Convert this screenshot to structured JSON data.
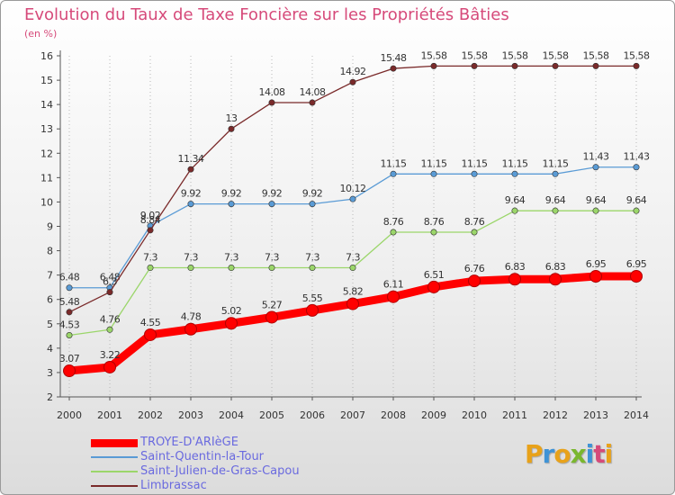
{
  "header": {
    "title": "Evolution du Taux de Taxe Foncière sur les Propriétés Bâties",
    "unit": "(en %)"
  },
  "logo": {
    "text": "Proxiti",
    "letters": [
      {
        "ch": "P",
        "color": "#e8a21a"
      },
      {
        "ch": "r",
        "color": "#3f93d6"
      },
      {
        "ch": "o",
        "color": "#e8a21a"
      },
      {
        "ch": "x",
        "color": "#7ab72e"
      },
      {
        "ch": "i",
        "color": "#3f93d6"
      },
      {
        "ch": "t",
        "color": "#d64a7a"
      },
      {
        "ch": "i",
        "color": "#e8a21a"
      }
    ]
  },
  "chart_data": {
    "type": "line",
    "title": "Evolution du Taux de Taxe Foncière sur les Propriétés Bâties",
    "ylabel": "(en %)",
    "xlabel": "",
    "x": [
      2000,
      2001,
      2002,
      2003,
      2004,
      2005,
      2006,
      2007,
      2008,
      2009,
      2010,
      2011,
      2012,
      2013,
      2014
    ],
    "x_labels": [
      "2000",
      "2001",
      "2002",
      "2003",
      "2004",
      "2005",
      "2006",
      "2007",
      "2008",
      "2009",
      "2010",
      "2011",
      "2012",
      "2013",
      "2014"
    ],
    "ylim": [
      2,
      16
    ],
    "y_ticks": [
      2,
      3,
      4,
      5,
      6,
      7,
      8,
      9,
      10,
      11,
      12,
      13,
      14,
      15,
      16
    ],
    "grid": "vertical-dotted",
    "legend_position": "bottom-left",
    "series": [
      {
        "name": "TROYE-D'ARIèGE",
        "color": "#ff0000",
        "emphasis": "thick",
        "values": [
          3.07,
          3.22,
          4.55,
          4.78,
          5.02,
          5.27,
          5.55,
          5.82,
          6.11,
          6.51,
          6.76,
          6.83,
          6.83,
          6.95,
          6.95
        ],
        "labels": [
          "3.07",
          "3.22",
          "4.55",
          "4.78",
          "5.02",
          "5.27",
          "5.55",
          "5.82",
          "6.11",
          "6.51",
          "6.76",
          "6.83",
          "6.83",
          "6.95",
          "6.95"
        ]
      },
      {
        "name": "Saint-Quentin-la-Tour",
        "color": "#5a9bd5",
        "emphasis": "normal",
        "values": [
          6.48,
          6.48,
          9.02,
          9.92,
          9.92,
          9.92,
          9.92,
          10.12,
          11.15,
          11.15,
          11.15,
          11.15,
          11.15,
          11.43,
          11.43
        ],
        "labels": [
          "6.48",
          "6.48",
          "9.02",
          "9.92",
          "9.92",
          "9.92",
          "9.92",
          "10.12",
          "11.15",
          "11.15",
          "11.15",
          "11.15",
          "11.15",
          "11.43",
          "11.43"
        ]
      },
      {
        "name": "Saint-Julien-de-Gras-Capou",
        "color": "#9bd66a",
        "emphasis": "normal",
        "values": [
          4.53,
          4.76,
          7.3,
          7.3,
          7.3,
          7.3,
          7.3,
          7.3,
          8.76,
          8.76,
          8.76,
          9.64,
          9.64,
          9.64,
          9.64
        ],
        "labels": [
          "4.53",
          "4.76",
          "7.3",
          "7.3",
          "7.3",
          "7.3",
          "7.3",
          "7.3",
          "8.76",
          "8.76",
          "8.76",
          "9.64",
          "9.64",
          "9.64",
          "9.64"
        ]
      },
      {
        "name": "Limbrassac",
        "color": "#7a2a2a",
        "emphasis": "normal",
        "values": [
          5.48,
          6.3,
          8.84,
          11.34,
          13,
          14.08,
          14.08,
          14.92,
          15.48,
          15.58,
          15.58,
          15.58,
          15.58,
          15.58,
          15.58
        ],
        "labels": [
          "5.48",
          "6.3",
          "8.84",
          "11.34",
          "13",
          "14.08",
          "14.08",
          "14.92",
          "15.48",
          "15.58",
          "15.58",
          "15.58",
          "15.58",
          "15.58",
          "15.58"
        ]
      }
    ]
  }
}
